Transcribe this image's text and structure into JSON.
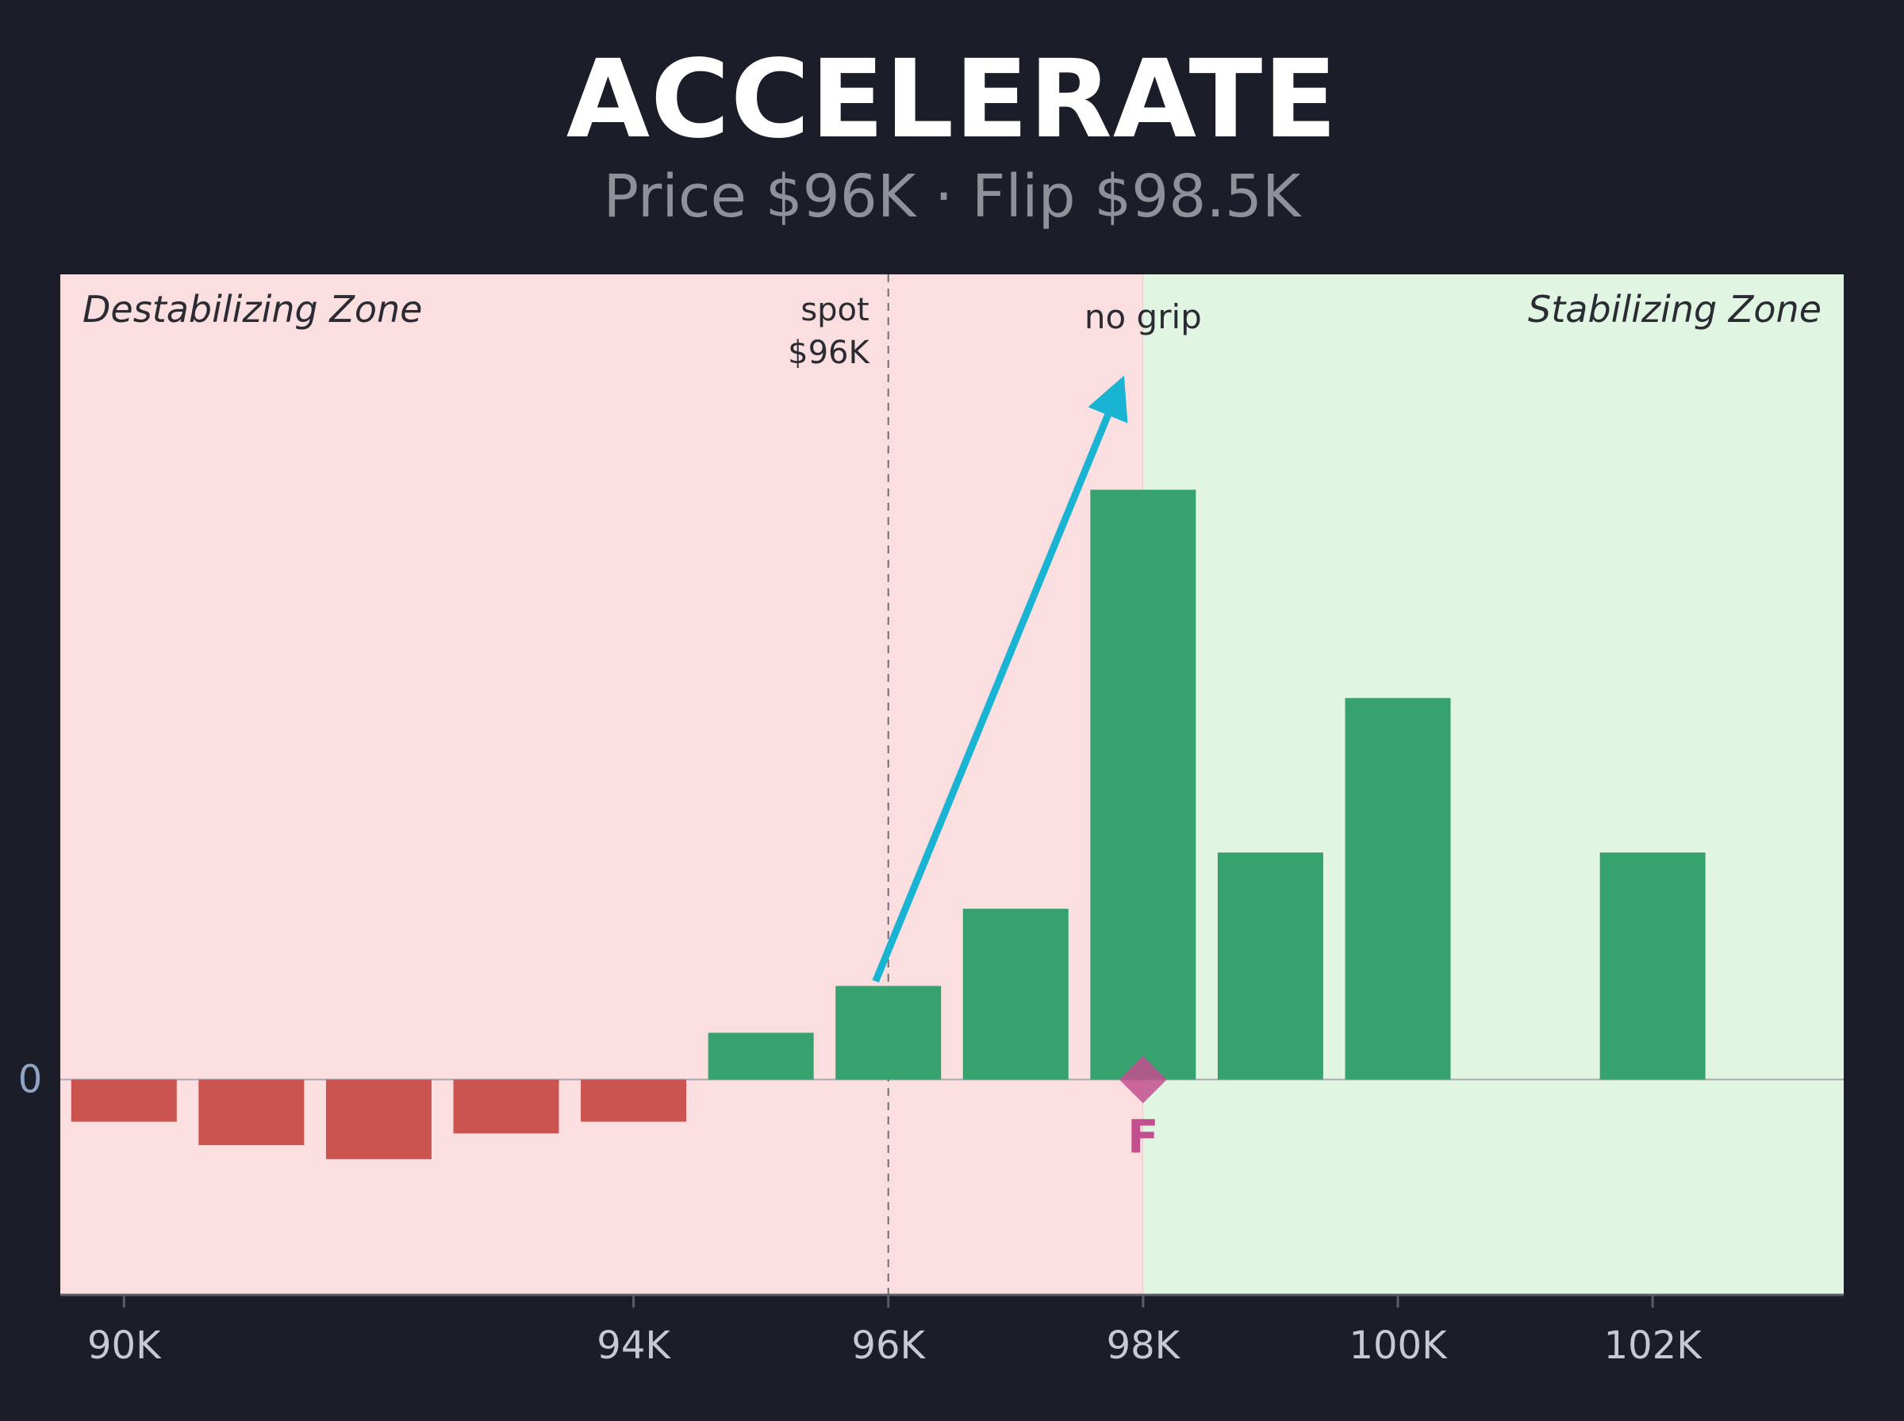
{
  "title": "ACCELERATE",
  "subtitle": "Price $96K · Flip $98.5K",
  "colors": {
    "background": "#1b1d28",
    "destabilizing_zone": "#fbdfe0",
    "stabilizing_zone": "#e1f5e3",
    "positive_bar": "#36a36f",
    "negative_bar": "#cc5450",
    "arrow": "#19b3d3",
    "flip_marker": "#c2508f",
    "tick_text": "#c7c9d0"
  },
  "chart_data": {
    "type": "bar",
    "zones": {
      "left_label": "Destabilizing Zone",
      "right_label": "Stabilizing Zone",
      "boundary_x": 98
    },
    "x": [
      90,
      91,
      92,
      93,
      94,
      95,
      96,
      97,
      98,
      99,
      100,
      102
    ],
    "values": [
      -0.9,
      -1.4,
      -1.7,
      -1.15,
      -0.9,
      1.0,
      2.0,
      3.65,
      12.6,
      4.85,
      8.15,
      4.85
    ],
    "xlim": [
      89.5,
      103.5
    ],
    "ylim": [
      -4.6,
      17.2
    ],
    "x_ticks": [
      {
        "x": 90,
        "label": "90K"
      },
      {
        "x": 94,
        "label": "94K"
      },
      {
        "x": 96,
        "label": "96K"
      },
      {
        "x": 98,
        "label": "98K"
      },
      {
        "x": 100,
        "label": "100K"
      },
      {
        "x": 102,
        "label": "102K"
      }
    ],
    "y_ticks": [
      {
        "y": 0,
        "label": "0"
      }
    ],
    "spot": {
      "x": 96,
      "label_line1": "spot",
      "label_line2": "$96K"
    },
    "annotation": {
      "text": "no grip",
      "from": [
        95.9,
        2.1
      ],
      "to": [
        97.8,
        14.7
      ]
    },
    "flip_marker": {
      "x": 98,
      "label": "F"
    },
    "grid": false,
    "legend": "none"
  }
}
